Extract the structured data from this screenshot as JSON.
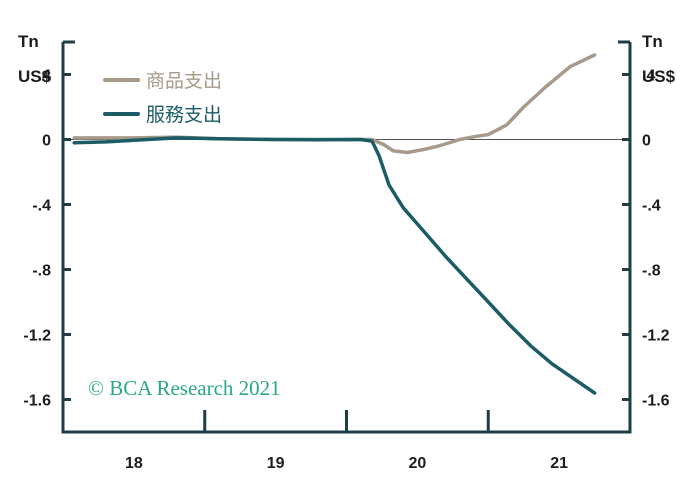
{
  "colors": {
    "goods": "#a89a8a",
    "services": "#1b5c66",
    "axis": "#1f3d44",
    "zero_line": "#555555",
    "credit": "#2aa889",
    "text": "#1d1d1d"
  },
  "chart_data": {
    "type": "line",
    "title": "",
    "unit_left": [
      "Tn",
      "US$"
    ],
    "unit_right": [
      "Tn",
      "US$"
    ],
    "xlabel": "",
    "ylabel": "",
    "xlim": [
      2017.5,
      2021.5
    ],
    "ylim": [
      -1.8,
      0.6
    ],
    "y_ticks": [
      0.4,
      0,
      -0.4,
      -0.8,
      -1.2,
      -1.6
    ],
    "y_tick_labels": [
      ".4",
      "0",
      "-.4",
      "-.8",
      "-1.2",
      "-1.6"
    ],
    "x_ticks": [
      2018,
      2019,
      2020,
      2021
    ],
    "x_tick_labels": [
      "18",
      "19",
      "20",
      "21"
    ],
    "legend_position": "top-left",
    "series": [
      {
        "name": "商品支出",
        "color_key": "goods",
        "points": [
          [
            2017.58,
            0.01
          ],
          [
            2017.8,
            0.01
          ],
          [
            2018.0,
            0.01
          ],
          [
            2018.3,
            0.015
          ],
          [
            2018.6,
            0.005
          ],
          [
            2019.0,
            0.0
          ],
          [
            2019.3,
            0.0
          ],
          [
            2019.6,
            0.0
          ],
          [
            2019.68,
            0.0
          ],
          [
            2019.76,
            -0.03
          ],
          [
            2019.83,
            -0.07
          ],
          [
            2019.93,
            -0.08
          ],
          [
            2020.05,
            -0.06
          ],
          [
            2020.15,
            -0.04
          ],
          [
            2020.3,
            0.0
          ],
          [
            2020.42,
            0.02
          ],
          [
            2020.5,
            0.03
          ],
          [
            2020.63,
            0.09
          ],
          [
            2020.75,
            0.2
          ],
          [
            2020.9,
            0.32
          ],
          [
            2021.08,
            0.45
          ],
          [
            2021.25,
            0.52
          ]
        ]
      },
      {
        "name": "服務支出",
        "color_key": "services",
        "points": [
          [
            2017.58,
            -0.02
          ],
          [
            2017.8,
            -0.015
          ],
          [
            2018.0,
            -0.005
          ],
          [
            2018.3,
            0.01
          ],
          [
            2018.6,
            0.005
          ],
          [
            2019.0,
            0.0
          ],
          [
            2019.3,
            -0.002
          ],
          [
            2019.6,
            0.0
          ],
          [
            2019.68,
            -0.01
          ],
          [
            2019.73,
            -0.1
          ],
          [
            2019.8,
            -0.28
          ],
          [
            2019.9,
            -0.42
          ],
          [
            2020.05,
            -0.57
          ],
          [
            2020.2,
            -0.72
          ],
          [
            2020.35,
            -0.86
          ],
          [
            2020.5,
            -1.0
          ],
          [
            2020.65,
            -1.14
          ],
          [
            2020.8,
            -1.27
          ],
          [
            2020.95,
            -1.38
          ],
          [
            2021.1,
            -1.47
          ],
          [
            2021.25,
            -1.56
          ]
        ]
      }
    ]
  },
  "credit": {
    "text": "© BCA Research 2021"
  }
}
